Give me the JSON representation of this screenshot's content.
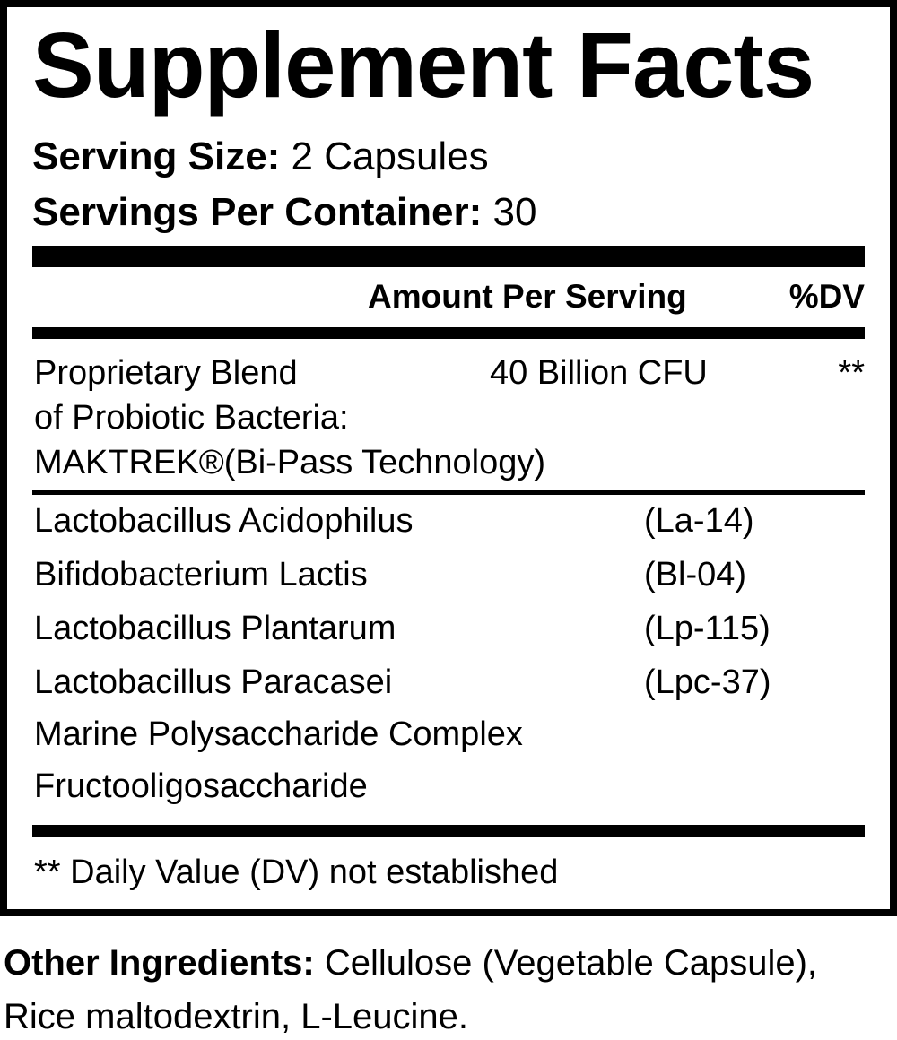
{
  "title": "Supplement Facts",
  "serving_size": {
    "label": "Serving Size:",
    "value": "2 Capsules"
  },
  "servings_per_container": {
    "label": "Servings Per Container:",
    "value": "30"
  },
  "header": {
    "amount": "Amount Per Serving",
    "dv": "%DV"
  },
  "blend": {
    "lines": [
      "Proprietary Blend",
      "of Probiotic Bacteria:",
      "MAKTREK®(Bi-Pass Technology)"
    ],
    "amount": "40 Billion CFU",
    "dv": "**"
  },
  "ingredients": [
    {
      "name": "Lactobacillus Acidophilus",
      "strain": "(La-14)"
    },
    {
      "name": "Bifidobacterium Lactis",
      "strain": "(Bl-04)"
    },
    {
      "name": "Lactobacillus Plantarum",
      "strain": "(Lp-115)"
    },
    {
      "name": "Lactobacillus Paracasei",
      "strain": "(Lpc-37)"
    },
    {
      "name": "Marine Polysaccharide Complex",
      "strain": ""
    },
    {
      "name": "Fructooligosaccharide",
      "strain": ""
    }
  ],
  "footnote": "** Daily Value (DV) not established",
  "other_ingredients": {
    "label": "Other Ingredients:",
    "line1": "Cellulose (Vegetable Capsule),",
    "line2": "Rice maltodextrin, L-Leucine."
  }
}
